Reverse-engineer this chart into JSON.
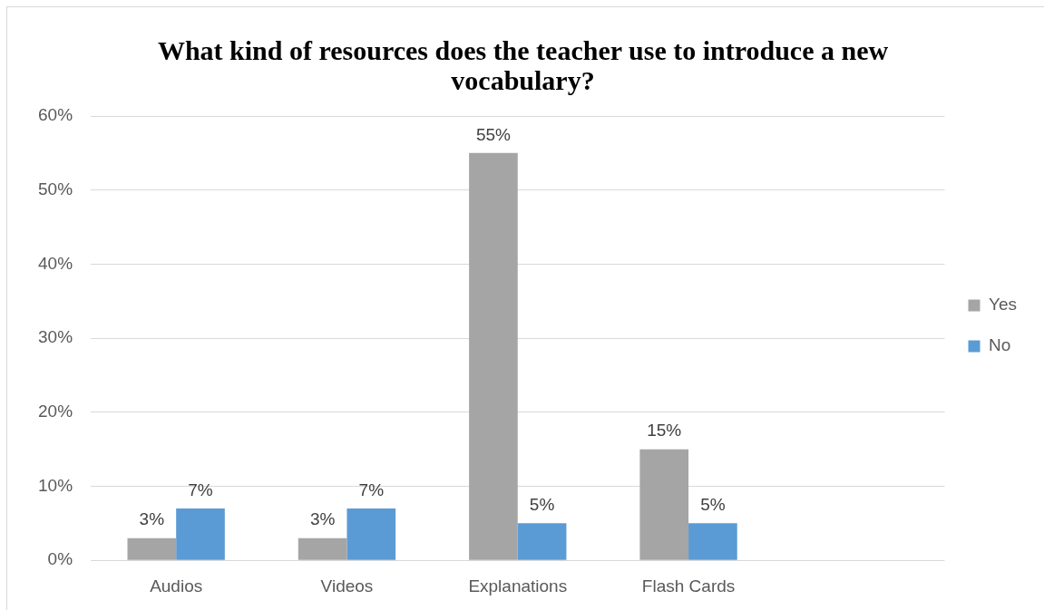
{
  "chart_data": {
    "type": "bar",
    "title": "What kind of resources does the teacher use to introduce a new vocabulary?",
    "categories": [
      "Audios",
      "Videos",
      "Explanations",
      "Flash Cards",
      null
    ],
    "series": [
      {
        "name": "Yes",
        "color": "#a5a5a5",
        "values": [
          3,
          3,
          55,
          15,
          null
        ],
        "value_labels": [
          "3%",
          "3%",
          "55%",
          "15%",
          null
        ]
      },
      {
        "name": "No",
        "color": "#5b9bd5",
        "values": [
          7,
          7,
          5,
          5,
          null
        ],
        "value_labels": [
          "7%",
          "7%",
          "5%",
          "5%",
          null
        ]
      }
    ],
    "ylim": [
      0,
      60
    ],
    "yticks": [
      {
        "value": 0,
        "label": "0%"
      },
      {
        "value": 10,
        "label": "10%"
      },
      {
        "value": 20,
        "label": "20%"
      },
      {
        "value": 30,
        "label": "30%"
      },
      {
        "value": 40,
        "label": "40%"
      },
      {
        "value": 50,
        "label": "50%"
      },
      {
        "value": 60,
        "label": "60%"
      }
    ],
    "grid": "y",
    "legend": "right"
  }
}
